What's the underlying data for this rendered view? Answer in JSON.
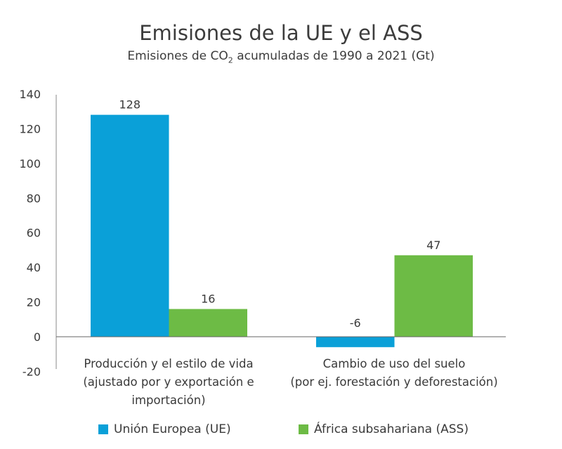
{
  "chart_data": {
    "type": "bar",
    "title": "Emisiones de la UE y el ASS",
    "subtitle_parts": [
      "Emisiones de CO",
      "2",
      " acumuladas de 1990 a 2021 (Gt)"
    ],
    "categories": [
      [
        "Producción y el estilo de vida",
        "(ajustado por y exportación e",
        "importación)"
      ],
      [
        "Cambio de uso del suelo",
        "(por ej. forestación y deforestación)"
      ]
    ],
    "series": [
      {
        "name": "Unión Europea (UE)",
        "color": "#0aa0d8",
        "values": [
          128,
          -6
        ]
      },
      {
        "name": "África subsahariana (ASS)",
        "color": "#6dbb45",
        "values": [
          16,
          47
        ]
      }
    ],
    "data_labels": [
      [
        "128",
        "-6"
      ],
      [
        "16",
        "47"
      ]
    ],
    "ylim": [
      -20,
      140
    ],
    "yticks": [
      "-20",
      "0",
      "20",
      "40",
      "60",
      "80",
      "100",
      "120",
      "140"
    ],
    "grid": false,
    "legend": "bottom"
  }
}
